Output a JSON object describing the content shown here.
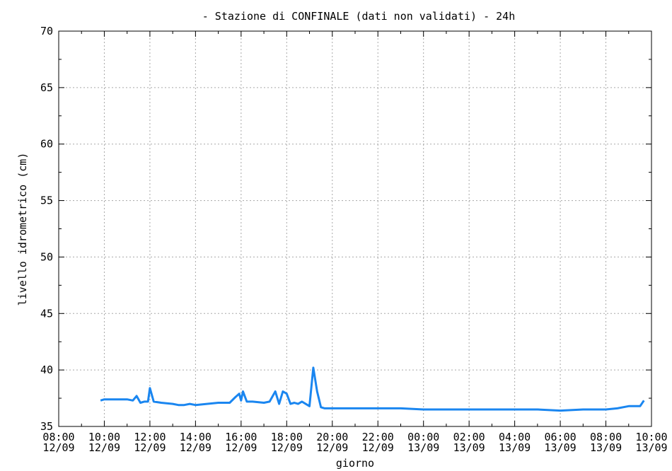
{
  "chart_data": {
    "type": "line",
    "title": "- Stazione di CONFINALE (dati non validati) - 24h",
    "xlabel": "giorno",
    "ylabel": "livello idrometrico (cm)",
    "ylim": [
      35,
      70
    ],
    "yticks": [
      35,
      40,
      45,
      50,
      55,
      60,
      65,
      70
    ],
    "xlim": [
      "2000-09-12T08:00",
      "2000-09-13T10:00"
    ],
    "xticks": [
      {
        "x": "2000-09-12T08:00",
        "time": "08:00",
        "date": "12/09"
      },
      {
        "x": "2000-09-12T10:00",
        "time": "10:00",
        "date": "12/09"
      },
      {
        "x": "2000-09-12T12:00",
        "time": "12:00",
        "date": "12/09"
      },
      {
        "x": "2000-09-12T14:00",
        "time": "14:00",
        "date": "12/09"
      },
      {
        "x": "2000-09-12T16:00",
        "time": "16:00",
        "date": "12/09"
      },
      {
        "x": "2000-09-12T18:00",
        "time": "18:00",
        "date": "12/09"
      },
      {
        "x": "2000-09-12T20:00",
        "time": "20:00",
        "date": "12/09"
      },
      {
        "x": "2000-09-12T22:00",
        "time": "22:00",
        "date": "12/09"
      },
      {
        "x": "2000-09-13T00:00",
        "time": "00:00",
        "date": "13/09"
      },
      {
        "x": "2000-09-13T02:00",
        "time": "02:00",
        "date": "13/09"
      },
      {
        "x": "2000-09-13T04:00",
        "time": "04:00",
        "date": "13/09"
      },
      {
        "x": "2000-09-13T06:00",
        "time": "06:00",
        "date": "13/09"
      },
      {
        "x": "2000-09-13T08:00",
        "time": "08:00",
        "date": "13/09"
      },
      {
        "x": "2000-09-13T10:00",
        "time": "10:00",
        "date": "13/09"
      }
    ],
    "grid": true,
    "series": [
      {
        "color": "#1a86f0",
        "x": [
          "2000-09-12T09:50",
          "2000-09-12T10:00",
          "2000-09-12T10:15",
          "2000-09-12T10:30",
          "2000-09-12T10:45",
          "2000-09-12T11:00",
          "2000-09-12T11:15",
          "2000-09-12T11:25",
          "2000-09-12T11:35",
          "2000-09-12T11:45",
          "2000-09-12T11:55",
          "2000-09-12T12:00",
          "2000-09-12T12:10",
          "2000-09-12T12:30",
          "2000-09-12T13:00",
          "2000-09-12T13:15",
          "2000-09-12T13:30",
          "2000-09-12T13:45",
          "2000-09-12T14:00",
          "2000-09-12T14:30",
          "2000-09-12T15:00",
          "2000-09-12T15:30",
          "2000-09-12T15:45",
          "2000-09-12T15:55",
          "2000-09-12T16:00",
          "2000-09-12T16:05",
          "2000-09-12T16:15",
          "2000-09-12T16:30",
          "2000-09-12T17:00",
          "2000-09-12T17:15",
          "2000-09-12T17:30",
          "2000-09-12T17:40",
          "2000-09-12T17:50",
          "2000-09-12T18:00",
          "2000-09-12T18:10",
          "2000-09-12T18:20",
          "2000-09-12T18:30",
          "2000-09-12T18:40",
          "2000-09-12T19:00",
          "2000-09-12T19:10",
          "2000-09-12T19:20",
          "2000-09-12T19:30",
          "2000-09-12T19:40",
          "2000-09-12T20:00",
          "2000-09-12T20:30",
          "2000-09-12T21:00",
          "2000-09-12T22:00",
          "2000-09-12T23:00",
          "2000-09-13T00:00",
          "2000-09-13T01:00",
          "2000-09-13T02:00",
          "2000-09-13T03:00",
          "2000-09-13T04:00",
          "2000-09-13T05:00",
          "2000-09-13T06:00",
          "2000-09-13T07:00",
          "2000-09-13T08:00",
          "2000-09-13T08:30",
          "2000-09-13T09:00",
          "2000-09-13T09:30",
          "2000-09-13T09:40"
        ],
        "y": [
          37.3,
          37.4,
          37.4,
          37.4,
          37.4,
          37.4,
          37.3,
          37.7,
          37.1,
          37.2,
          37.2,
          38.4,
          37.2,
          37.1,
          37.0,
          36.9,
          36.9,
          37.0,
          36.9,
          37.0,
          37.1,
          37.1,
          37.6,
          37.9,
          37.3,
          38.1,
          37.2,
          37.2,
          37.1,
          37.2,
          38.1,
          37.0,
          38.1,
          37.9,
          37.0,
          37.1,
          37.0,
          37.2,
          36.8,
          40.2,
          38.1,
          36.7,
          36.6,
          36.6,
          36.6,
          36.6,
          36.6,
          36.6,
          36.5,
          36.5,
          36.5,
          36.5,
          36.5,
          36.5,
          36.4,
          36.5,
          36.5,
          36.6,
          36.8,
          36.8,
          37.3
        ]
      }
    ]
  }
}
